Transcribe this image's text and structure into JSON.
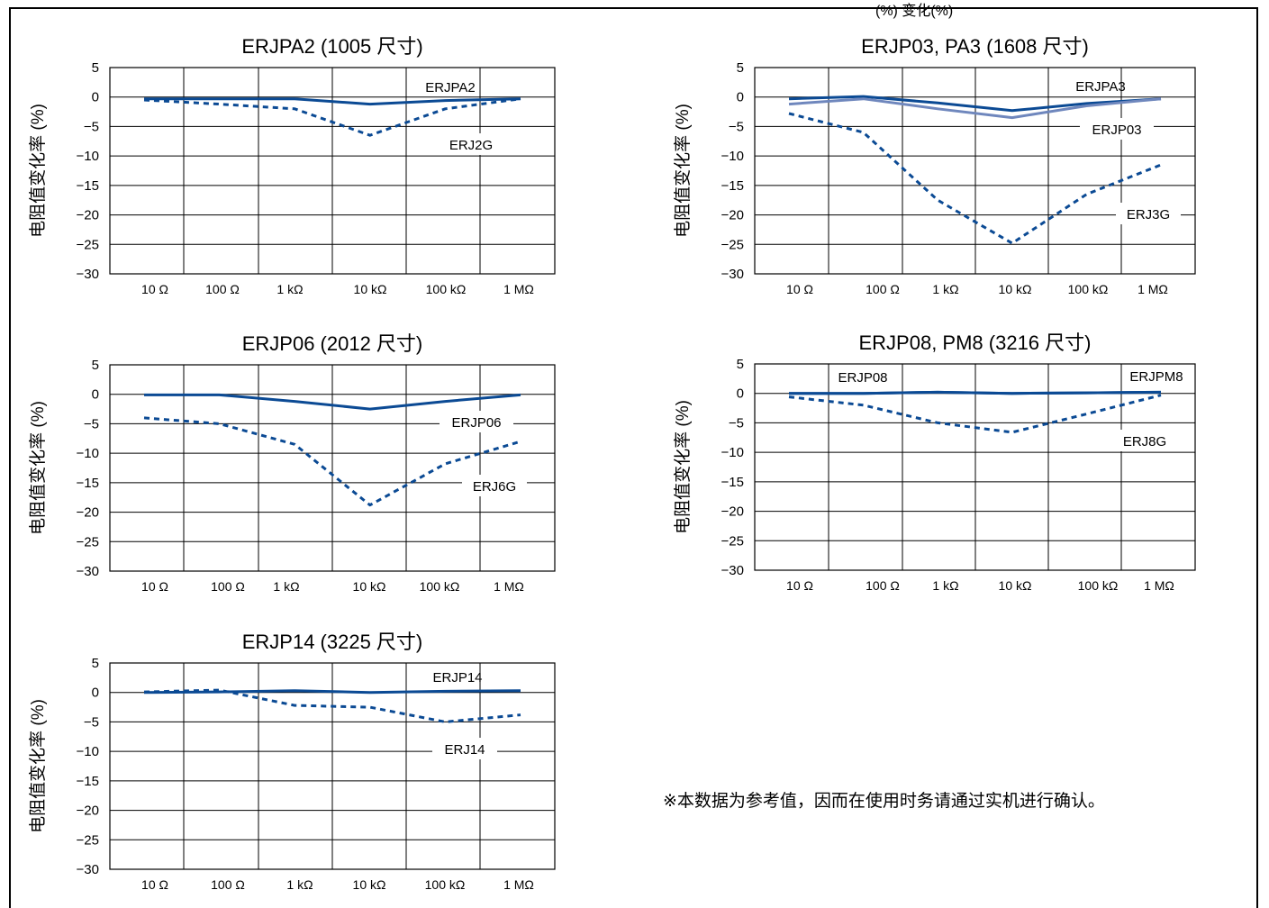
{
  "header_fragment": "(%) 变化(%)",
  "note": "※本数据为参考值，因而在使用时务请通过实机进行确认。",
  "colors": {
    "primary": "#0b4a94",
    "secondary": "#6f87bd",
    "grid": "#000000"
  },
  "chart_data": [
    {
      "type": "line",
      "title": "ERJPA2 (1005 尺寸)",
      "ylabel": "电阻值变化率 (%)",
      "categories": [
        "10 Ω",
        "100 Ω",
        "1 kΩ",
        "10 kΩ",
        "100 kΩ",
        "1 MΩ"
      ],
      "yticks": [
        "5",
        "0",
        "-5",
        "-10",
        "-15",
        "-20",
        "-25",
        "-30"
      ],
      "ylim": [
        -30,
        5
      ],
      "grid": true,
      "series": [
        {
          "name": "ERJPA2",
          "style": "solid",
          "color": "#0b4a94",
          "x": [
            0,
            1,
            2,
            3,
            4,
            5
          ],
          "values": [
            -0.3,
            -0.3,
            -0.3,
            -1.2,
            -0.6,
            -0.3
          ]
        },
        {
          "name": "ERJ2G",
          "style": "dashed",
          "color": "#0b4a94",
          "x": [
            0,
            1,
            2,
            3,
            4,
            5
          ],
          "values": [
            -0.5,
            -1.2,
            -2.0,
            -6.5,
            -2.0,
            -0.3
          ]
        }
      ]
    },
    {
      "type": "line",
      "title": "ERJP03, PA3 (1608 尺寸)",
      "ylabel": "电阻值变化率 (%)",
      "categories": [
        "10 Ω",
        "100 Ω",
        "1 kΩ",
        "10 kΩ",
        "100 kΩ",
        "1 MΩ"
      ],
      "yticks": [
        "5",
        "0",
        "-5",
        "-10",
        "-15",
        "-20",
        "-25",
        "-30"
      ],
      "ylim": [
        -30,
        5
      ],
      "grid": true,
      "series": [
        {
          "name": "ERJPA3",
          "style": "solid",
          "color": "#0b4a94",
          "x": [
            0,
            1,
            2,
            3,
            4,
            5
          ],
          "values": [
            -0.3,
            0.1,
            -1.0,
            -2.3,
            -1.1,
            -0.3
          ]
        },
        {
          "name": "ERJP03",
          "style": "solid",
          "color": "#6f87bd",
          "x": [
            0,
            1,
            2,
            3,
            4,
            5
          ],
          "values": [
            -1.2,
            -0.3,
            -2.0,
            -3.5,
            -1.5,
            -0.3
          ]
        },
        {
          "name": "ERJ3G",
          "style": "dashed",
          "color": "#0b4a94",
          "x": [
            0,
            1,
            2,
            3,
            4,
            5
          ],
          "values": [
            -2.8,
            -6.0,
            -17.5,
            -24.8,
            -16.5,
            -11.5
          ]
        }
      ]
    },
    {
      "type": "line",
      "title": "ERJP06 (2012 尺寸)",
      "ylabel": "电阻值变化率 (%)",
      "categories": [
        "10 Ω",
        "100 Ω",
        "1 kΩ",
        "10 kΩ",
        "100 kΩ",
        "1 MΩ"
      ],
      "yticks": [
        "5",
        "0",
        "-5",
        "-10",
        "-15",
        "-20",
        "-25",
        "-30"
      ],
      "ylim": [
        -30,
        5
      ],
      "grid": true,
      "series": [
        {
          "name": "ERJP06",
          "style": "solid",
          "color": "#0b4a94",
          "x": [
            0,
            1,
            2,
            3,
            4,
            5
          ],
          "values": [
            -0.1,
            -0.1,
            -1.2,
            -2.5,
            -1.2,
            -0.1
          ]
        },
        {
          "name": "ERJ6G",
          "style": "dashed",
          "color": "#0b4a94",
          "x": [
            0,
            1,
            2,
            3,
            4,
            5
          ],
          "values": [
            -4.0,
            -5.0,
            -8.5,
            -18.8,
            -11.8,
            -8.0
          ]
        }
      ]
    },
    {
      "type": "line",
      "title": "ERJP08, PM8 (3216 尺寸)",
      "ylabel": "电阻值变化率 (%)",
      "categories": [
        "10 Ω",
        "100 Ω",
        "1 kΩ",
        "10 kΩ",
        "100 kΩ",
        "1 MΩ"
      ],
      "yticks": [
        "5",
        "0",
        "-5",
        "-10",
        "-15",
        "-20",
        "-25",
        "-30"
      ],
      "ylim": [
        -30,
        5
      ],
      "grid": true,
      "series": [
        {
          "name": "ERJP08",
          "style": "solid",
          "color": "#0b4a94",
          "x": [
            0,
            1,
            2,
            3,
            4,
            5
          ],
          "values": [
            0.0,
            0.0,
            0.2,
            0.0,
            0.1,
            0.2
          ]
        },
        {
          "name": "ERJPM8",
          "style": "solid",
          "color": "#0b4a94",
          "x": [
            0,
            1,
            2,
            3,
            4,
            5
          ],
          "values": [
            0.0,
            0.0,
            0.2,
            0.0,
            0.1,
            0.2
          ]
        },
        {
          "name": "ERJ8G",
          "style": "dashed",
          "color": "#0b4a94",
          "x": [
            0,
            1,
            2,
            3,
            4,
            5
          ],
          "values": [
            -0.6,
            -2.0,
            -5.0,
            -6.6,
            -3.5,
            -0.3
          ]
        }
      ]
    },
    {
      "type": "line",
      "title": "ERJP14 (3225 尺寸)",
      "ylabel": "电阻值变化率 (%)",
      "categories": [
        "10 Ω",
        "100 Ω",
        "1 kΩ",
        "10 kΩ",
        "100 kΩ",
        "1 MΩ"
      ],
      "yticks": [
        "5",
        "0",
        "-5",
        "-10",
        "-15",
        "-20",
        "-25",
        "-30"
      ],
      "ylim": [
        -30,
        5
      ],
      "grid": true,
      "series": [
        {
          "name": "ERJP14",
          "style": "solid",
          "color": "#0b4a94",
          "x": [
            0,
            1,
            2,
            3,
            4,
            5
          ],
          "values": [
            0.0,
            0.1,
            0.3,
            0.0,
            0.2,
            0.3
          ]
        },
        {
          "name": "ERJ14",
          "style": "dashed",
          "color": "#0b4a94",
          "x": [
            0,
            1,
            2,
            3,
            4,
            5
          ],
          "values": [
            0.1,
            0.4,
            -2.2,
            -2.5,
            -5.0,
            -3.8
          ]
        }
      ]
    }
  ]
}
